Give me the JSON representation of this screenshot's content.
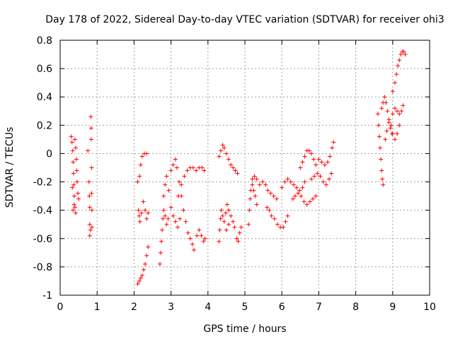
{
  "chart_data": {
    "type": "scatter",
    "title": "Day 178 of 2022, Sidereal Day-to-day VTEC variation (SDTVAR) for receiver ohi3",
    "xlabel": "GPS time / hours",
    "ylabel": "SDTVAR / TECUs",
    "xlim": [
      0,
      10
    ],
    "ylim": [
      -1,
      0.8
    ],
    "x_ticks": [
      "0",
      "1",
      "2",
      "3",
      "4",
      "5",
      "6",
      "7",
      "8",
      "9",
      "10"
    ],
    "y_ticks": [
      "-1",
      "-0.8",
      "-0.6",
      "-0.4",
      "-0.2",
      "0",
      "0.2",
      "0.4",
      "0.6",
      "0.8"
    ],
    "grid": true,
    "marker": "+",
    "color": "#ff0000",
    "series": [
      {
        "points": [
          [
            0.3,
            0.12
          ],
          [
            0.32,
            0.08
          ],
          [
            0.34,
            0.02
          ],
          [
            0.35,
            -0.06
          ],
          [
            0.36,
            -0.14
          ],
          [
            0.37,
            -0.22
          ],
          [
            0.38,
            -0.3
          ],
          [
            0.4,
            -0.38
          ],
          [
            0.42,
            -0.42
          ],
          [
            0.33,
            -0.24
          ],
          [
            0.35,
            -0.4
          ],
          [
            0.38,
            -0.36
          ],
          [
            0.4,
            0.1
          ],
          [
            0.42,
            0.04
          ],
          [
            0.44,
            -0.04
          ],
          [
            0.45,
            -0.12
          ],
          [
            0.46,
            -0.2
          ],
          [
            0.48,
            -0.28
          ],
          [
            0.5,
            -0.32
          ],
          [
            0.75,
            0.02
          ],
          [
            0.78,
            -0.2
          ],
          [
            0.79,
            -0.3
          ],
          [
            0.8,
            -0.38
          ],
          [
            0.8,
            -0.5
          ],
          [
            0.8,
            -0.58
          ],
          [
            0.82,
            -0.54
          ],
          [
            0.83,
            0.26
          ],
          [
            0.84,
            0.18
          ],
          [
            0.84,
            0.1
          ],
          [
            0.85,
            -0.1
          ],
          [
            0.85,
            -0.28
          ],
          [
            0.86,
            -0.4
          ],
          [
            0.86,
            -0.52
          ],
          [
            2.1,
            -0.2
          ],
          [
            2.12,
            -0.4
          ],
          [
            2.14,
            -0.44
          ],
          [
            2.16,
            -0.48
          ],
          [
            2.2,
            -0.42
          ],
          [
            2.1,
            -0.92
          ],
          [
            2.14,
            -0.9
          ],
          [
            2.18,
            -0.88
          ],
          [
            2.22,
            -0.86
          ],
          [
            2.26,
            -0.82
          ],
          [
            2.3,
            -0.78
          ],
          [
            2.34,
            -0.72
          ],
          [
            2.38,
            -0.66
          ],
          [
            2.15,
            -0.16
          ],
          [
            2.18,
            -0.08
          ],
          [
            2.22,
            -0.02
          ],
          [
            2.28,
            0.0
          ],
          [
            2.34,
            0.0
          ],
          [
            2.25,
            -0.34
          ],
          [
            2.3,
            -0.4
          ],
          [
            2.34,
            -0.46
          ],
          [
            2.38,
            -0.42
          ],
          [
            2.7,
            -0.78
          ],
          [
            2.72,
            -0.7
          ],
          [
            2.74,
            -0.62
          ],
          [
            2.76,
            -0.54
          ],
          [
            2.78,
            -0.46
          ],
          [
            2.8,
            -0.4
          ],
          [
            2.84,
            -0.44
          ],
          [
            2.88,
            -0.5
          ],
          [
            2.92,
            -0.46
          ],
          [
            2.8,
            -0.3
          ],
          [
            2.84,
            -0.22
          ],
          [
            2.88,
            -0.16
          ],
          [
            2.94,
            -0.26
          ],
          [
            3.0,
            -0.38
          ],
          [
            3.06,
            -0.44
          ],
          [
            3.12,
            -0.48
          ],
          [
            3.18,
            -0.52
          ],
          [
            3.24,
            -0.46
          ],
          [
            3.0,
            -0.12
          ],
          [
            3.06,
            -0.08
          ],
          [
            3.12,
            -0.04
          ],
          [
            3.16,
            -0.1
          ],
          [
            3.22,
            -0.2
          ],
          [
            3.28,
            -0.3
          ],
          [
            3.34,
            -0.4
          ],
          [
            3.4,
            -0.48
          ],
          [
            3.46,
            -0.56
          ],
          [
            3.52,
            -0.6
          ],
          [
            3.58,
            -0.64
          ],
          [
            3.62,
            -0.68
          ],
          [
            3.2,
            -0.3
          ],
          [
            3.28,
            -0.22
          ],
          [
            3.36,
            -0.16
          ],
          [
            3.44,
            -0.12
          ],
          [
            3.52,
            -0.1
          ],
          [
            3.6,
            -0.1
          ],
          [
            3.68,
            -0.12
          ],
          [
            3.76,
            -0.1
          ],
          [
            3.84,
            -0.1
          ],
          [
            3.9,
            -0.12
          ],
          [
            3.7,
            -0.58
          ],
          [
            3.76,
            -0.54
          ],
          [
            3.82,
            -0.58
          ],
          [
            3.88,
            -0.62
          ],
          [
            3.92,
            -0.6
          ],
          [
            4.3,
            -0.62
          ],
          [
            4.32,
            -0.54
          ],
          [
            4.34,
            -0.46
          ],
          [
            4.36,
            -0.4
          ],
          [
            4.4,
            -0.44
          ],
          [
            4.44,
            -0.48
          ],
          [
            4.48,
            -0.42
          ],
          [
            4.52,
            -0.36
          ],
          [
            4.56,
            -0.4
          ],
          [
            4.3,
            -0.02
          ],
          [
            4.35,
            0.02
          ],
          [
            4.4,
            0.06
          ],
          [
            4.44,
            0.04
          ],
          [
            4.5,
            0.0
          ],
          [
            4.56,
            -0.04
          ],
          [
            4.62,
            -0.08
          ],
          [
            4.68,
            -0.1
          ],
          [
            4.74,
            -0.12
          ],
          [
            4.8,
            -0.14
          ],
          [
            4.5,
            -0.54
          ],
          [
            4.56,
            -0.5
          ],
          [
            4.62,
            -0.44
          ],
          [
            4.68,
            -0.48
          ],
          [
            4.72,
            -0.52
          ],
          [
            4.78,
            -0.6
          ],
          [
            4.82,
            -0.62
          ],
          [
            4.86,
            -0.56
          ],
          [
            4.9,
            -0.52
          ],
          [
            5.1,
            -0.5
          ],
          [
            5.12,
            -0.4
          ],
          [
            5.14,
            -0.32
          ],
          [
            5.16,
            -0.26
          ],
          [
            5.2,
            -0.22
          ],
          [
            5.24,
            -0.26
          ],
          [
            5.28,
            -0.3
          ],
          [
            5.32,
            -0.36
          ],
          [
            5.2,
            -0.18
          ],
          [
            5.26,
            -0.16
          ],
          [
            5.32,
            -0.18
          ],
          [
            5.4,
            -0.22
          ],
          [
            5.48,
            -0.2
          ],
          [
            5.56,
            -0.22
          ],
          [
            5.62,
            -0.26
          ],
          [
            5.7,
            -0.28
          ],
          [
            5.78,
            -0.3
          ],
          [
            5.86,
            -0.32
          ],
          [
            5.6,
            -0.38
          ],
          [
            5.66,
            -0.4
          ],
          [
            5.72,
            -0.44
          ],
          [
            5.8,
            -0.46
          ],
          [
            5.88,
            -0.5
          ],
          [
            5.96,
            -0.52
          ],
          [
            6.04,
            -0.52
          ],
          [
            6.1,
            -0.48
          ],
          [
            6.16,
            -0.44
          ],
          [
            6.0,
            -0.24
          ],
          [
            6.08,
            -0.2
          ],
          [
            6.16,
            -0.18
          ],
          [
            6.24,
            -0.2
          ],
          [
            6.32,
            -0.22
          ],
          [
            6.4,
            -0.24
          ],
          [
            6.48,
            -0.26
          ],
          [
            6.56,
            -0.24
          ],
          [
            6.62,
            -0.2
          ],
          [
            6.3,
            -0.32
          ],
          [
            6.36,
            -0.3
          ],
          [
            6.44,
            -0.28
          ],
          [
            6.52,
            -0.3
          ],
          [
            6.6,
            -0.34
          ],
          [
            6.68,
            -0.36
          ],
          [
            6.76,
            -0.34
          ],
          [
            6.84,
            -0.32
          ],
          [
            6.92,
            -0.3
          ],
          [
            6.5,
            -0.1
          ],
          [
            6.56,
            -0.06
          ],
          [
            6.62,
            -0.02
          ],
          [
            6.68,
            0.02
          ],
          [
            6.74,
            0.02
          ],
          [
            6.8,
            0.0
          ],
          [
            6.86,
            -0.04
          ],
          [
            6.92,
            -0.08
          ],
          [
            6.8,
            -0.18
          ],
          [
            6.88,
            -0.16
          ],
          [
            6.96,
            -0.14
          ],
          [
            7.04,
            -0.16
          ],
          [
            7.12,
            -0.2
          ],
          [
            7.2,
            -0.22
          ],
          [
            7.28,
            -0.18
          ],
          [
            7.34,
            -0.14
          ],
          [
            7.0,
            -0.04
          ],
          [
            7.08,
            -0.06
          ],
          [
            7.16,
            -0.08
          ],
          [
            7.24,
            -0.06
          ],
          [
            7.3,
            -0.02
          ],
          [
            7.36,
            0.04
          ],
          [
            7.4,
            0.08
          ],
          [
            8.6,
            0.28
          ],
          [
            8.62,
            0.2
          ],
          [
            8.64,
            0.12
          ],
          [
            8.66,
            0.04
          ],
          [
            8.68,
            -0.04
          ],
          [
            8.7,
            -0.12
          ],
          [
            8.72,
            -0.18
          ],
          [
            8.74,
            -0.22
          ],
          [
            8.7,
            0.32
          ],
          [
            8.74,
            0.36
          ],
          [
            8.78,
            0.4
          ],
          [
            8.82,
            0.36
          ],
          [
            8.86,
            0.3
          ],
          [
            8.9,
            0.24
          ],
          [
            8.94,
            0.18
          ],
          [
            8.98,
            0.14
          ],
          [
            8.8,
            0.1
          ],
          [
            8.84,
            0.16
          ],
          [
            8.9,
            0.22
          ],
          [
            8.96,
            0.2
          ],
          [
            9.0,
            0.14
          ],
          [
            9.06,
            0.1
          ],
          [
            9.12,
            0.14
          ],
          [
            9.18,
            0.2
          ],
          [
            9.0,
            0.28
          ],
          [
            9.06,
            0.32
          ],
          [
            9.12,
            0.3
          ],
          [
            9.18,
            0.28
          ],
          [
            9.24,
            0.3
          ],
          [
            9.28,
            0.34
          ],
          [
            9.0,
            0.44
          ],
          [
            9.06,
            0.5
          ],
          [
            9.1,
            0.56
          ],
          [
            9.14,
            0.62
          ],
          [
            9.18,
            0.66
          ],
          [
            9.22,
            0.7
          ],
          [
            9.26,
            0.72
          ],
          [
            9.3,
            0.72
          ],
          [
            9.34,
            0.7
          ]
        ]
      }
    ]
  }
}
